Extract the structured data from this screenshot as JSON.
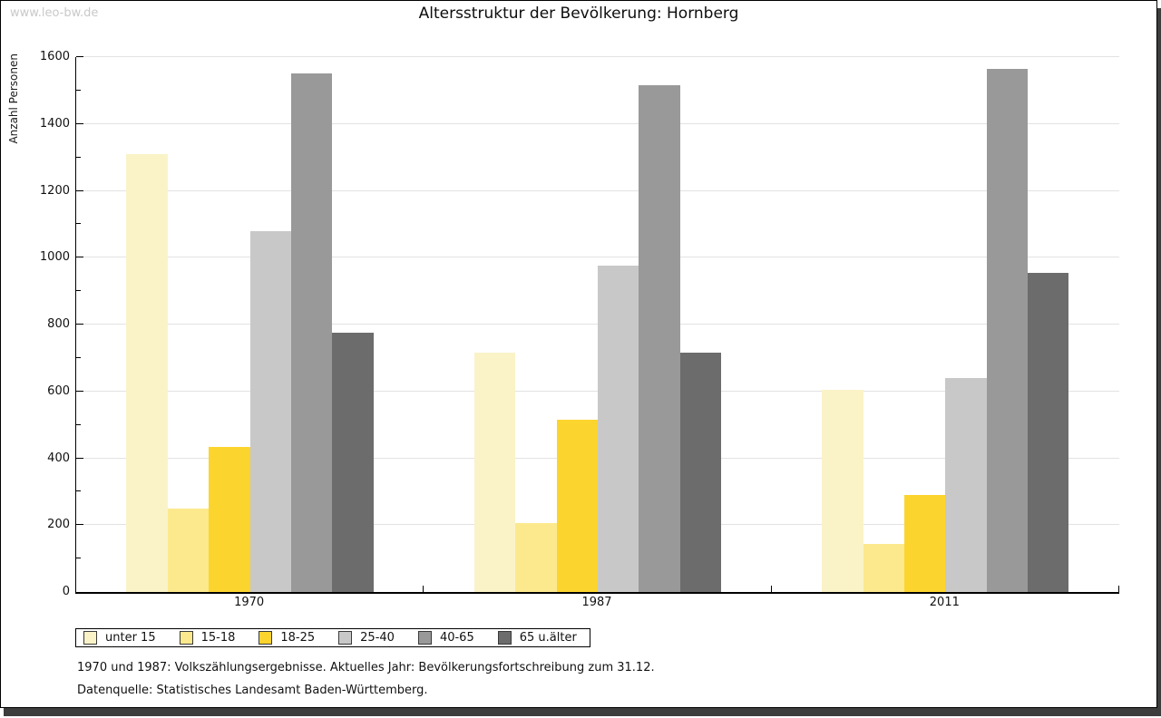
{
  "watermark": "www.leo-bw.de",
  "title": "Altersstruktur der Bevölkerung: Hornberg",
  "footer": {
    "line1": "1970 und 1987: Volkszählungsergebnisse. Aktuelles Jahr: Bevölkerungsfortschreibung zum 31.12.",
    "line2": "Datenquelle: Statistisches Landesamt Baden-Württemberg."
  },
  "colors": {
    "grid": "#e2e2e2",
    "axis": "#000000",
    "watermark": "#c9c9c9",
    "frame_shadow": "#3d3d3d"
  },
  "chart_data": {
    "type": "bar",
    "title": "Altersstruktur der Bevölkerung: Hornberg",
    "xlabel": "",
    "ylabel": "Anzahl Personen",
    "categories": [
      "1970",
      "1987",
      "2011"
    ],
    "series": [
      {
        "name": "unter 15",
        "color": "#faf3c8",
        "values": [
          1310,
          715,
          605
        ]
      },
      {
        "name": "15-18",
        "color": "#fce98d",
        "values": [
          250,
          205,
          145
        ]
      },
      {
        "name": "18-25",
        "color": "#fcd42e",
        "values": [
          435,
          515,
          290
        ]
      },
      {
        "name": "25-40",
        "color": "#c8c8c8",
        "values": [
          1080,
          975,
          640
        ]
      },
      {
        "name": "40-65",
        "color": "#999999",
        "values": [
          1550,
          1515,
          1565
        ]
      },
      {
        "name": "65 u.älter",
        "color": "#6c6c6c",
        "values": [
          775,
          715,
          955
        ]
      }
    ],
    "ylim": [
      0,
      1600
    ],
    "ytick_step": 200,
    "ytick_minor_step": 100,
    "grid": true,
    "legend_position": "bottom-left"
  }
}
